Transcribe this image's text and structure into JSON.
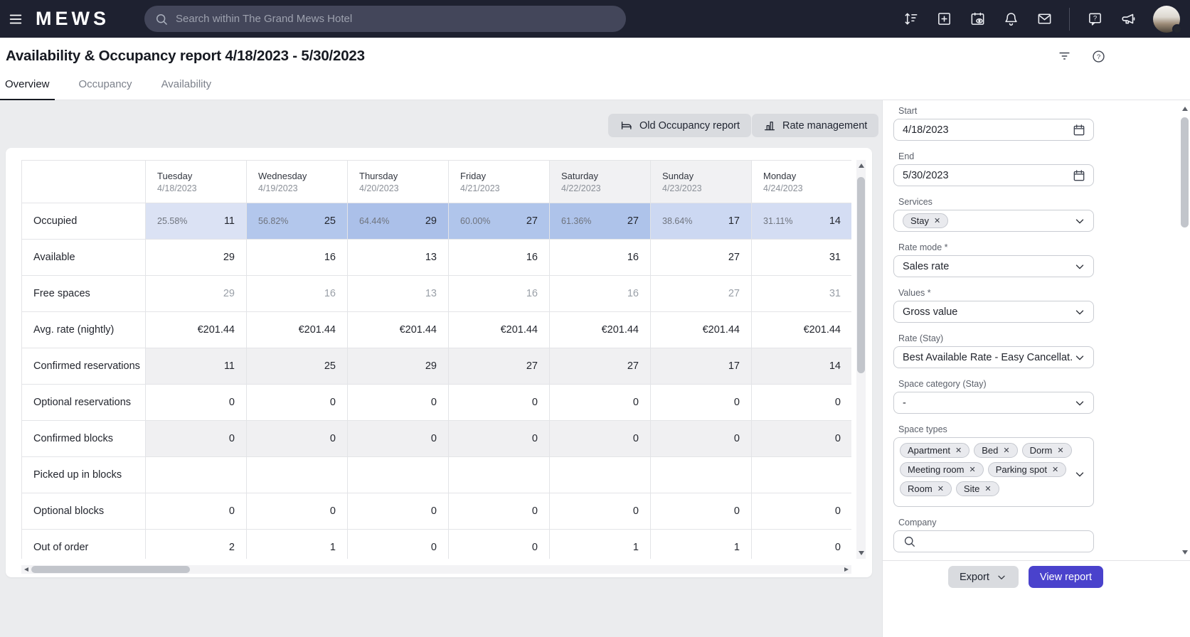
{
  "topbar": {
    "logo": "MEWS",
    "search_placeholder": "Search within The Grand Mews Hotel"
  },
  "header": {
    "title": "Availability & Occupancy report 4/18/2023 - 5/30/2023",
    "tabs": [
      {
        "label": "Overview",
        "active": true
      },
      {
        "label": "Occupancy",
        "active": false
      },
      {
        "label": "Availability",
        "active": false
      }
    ]
  },
  "toolbar": {
    "old_occupancy_label": "Old Occupancy report",
    "rate_management_label": "Rate management"
  },
  "table": {
    "columns": [
      {
        "day": "Tuesday",
        "date": "4/18/2023",
        "weekend": false
      },
      {
        "day": "Wednesday",
        "date": "4/19/2023",
        "weekend": false
      },
      {
        "day": "Thursday",
        "date": "4/20/2023",
        "weekend": false
      },
      {
        "day": "Friday",
        "date": "4/21/2023",
        "weekend": false
      },
      {
        "day": "Saturday",
        "date": "4/22/2023",
        "weekend": true
      },
      {
        "day": "Sunday",
        "date": "4/23/2023",
        "weekend": true
      },
      {
        "day": "Monday",
        "date": "4/24/2023",
        "weekend": false
      }
    ],
    "rows": [
      {
        "label": "Occupied",
        "type": "occupied",
        "cells": [
          {
            "pct": "25.58%",
            "value": "11",
            "bg": "#dbe2f4"
          },
          {
            "pct": "56.82%",
            "value": "25",
            "bg": "#b3c7ec"
          },
          {
            "pct": "64.44%",
            "value": "29",
            "bg": "#abc0e9"
          },
          {
            "pct": "60.00%",
            "value": "27",
            "bg": "#b0c5eb"
          },
          {
            "pct": "61.36%",
            "value": "27",
            "bg": "#aec3ea"
          },
          {
            "pct": "38.64%",
            "value": "17",
            "bg": "#ccd8f2"
          },
          {
            "pct": "31.11%",
            "value": "14",
            "bg": "#d4ddf3"
          }
        ]
      },
      {
        "label": "Available",
        "values": [
          "29",
          "16",
          "13",
          "16",
          "16",
          "27",
          "31"
        ],
        "muted": false,
        "shaded": false
      },
      {
        "label": "Free spaces",
        "values": [
          "29",
          "16",
          "13",
          "16",
          "16",
          "27",
          "31"
        ],
        "muted": true,
        "shaded": false
      },
      {
        "label": "Avg. rate (nightly)",
        "values": [
          "€201.44",
          "€201.44",
          "€201.44",
          "€201.44",
          "€201.44",
          "€201.44",
          "€201.44"
        ],
        "muted": false,
        "shaded": false
      },
      {
        "label": "Confirmed reservations",
        "values": [
          "11",
          "25",
          "29",
          "27",
          "27",
          "17",
          "14"
        ],
        "muted": false,
        "shaded": true
      },
      {
        "label": "Optional reservations",
        "values": [
          "0",
          "0",
          "0",
          "0",
          "0",
          "0",
          "0"
        ],
        "muted": false,
        "shaded": false
      },
      {
        "label": "Confirmed blocks",
        "values": [
          "0",
          "0",
          "0",
          "0",
          "0",
          "0",
          "0"
        ],
        "muted": false,
        "shaded": true
      },
      {
        "label": "Picked up in blocks",
        "values": [
          "",
          "",
          "",
          "",
          "",
          "",
          ""
        ],
        "muted": false,
        "shaded": false
      },
      {
        "label": "Optional blocks",
        "values": [
          "0",
          "0",
          "0",
          "0",
          "0",
          "0",
          "0"
        ],
        "muted": false,
        "shaded": false
      },
      {
        "label": "Out of order",
        "values": [
          "2",
          "1",
          "0",
          "0",
          "1",
          "1",
          "0"
        ],
        "muted": false,
        "shaded": false
      }
    ]
  },
  "sidebar": {
    "fields": {
      "start": {
        "label": "Start",
        "value": "4/18/2023"
      },
      "end": {
        "label": "End",
        "value": "5/30/2023"
      },
      "services": {
        "label": "Services",
        "chips": [
          "Stay"
        ]
      },
      "rate_mode": {
        "label": "Rate mode *",
        "value": "Sales rate"
      },
      "values": {
        "label": "Values *",
        "value": "Gross value"
      },
      "rate_stay": {
        "label": "Rate (Stay)",
        "value": "Best Available Rate - Easy Cancellat..."
      },
      "space_category": {
        "label": "Space category (Stay)",
        "value": "-"
      },
      "space_types": {
        "label": "Space types",
        "chips": [
          "Apartment",
          "Bed",
          "Dorm",
          "Meeting room",
          "Parking spot",
          "Room",
          "Site"
        ]
      },
      "company": {
        "label": "Company",
        "value": ""
      }
    },
    "footer": {
      "export_label": "Export",
      "view_report_label": "View report"
    }
  },
  "icons": {
    "remove_glyph": "✕",
    "question_glyph": "?"
  },
  "colors": {
    "accent": "#4a42cc",
    "topbar_bg": "#1e2130",
    "occupied_base": "#87a6dd"
  }
}
